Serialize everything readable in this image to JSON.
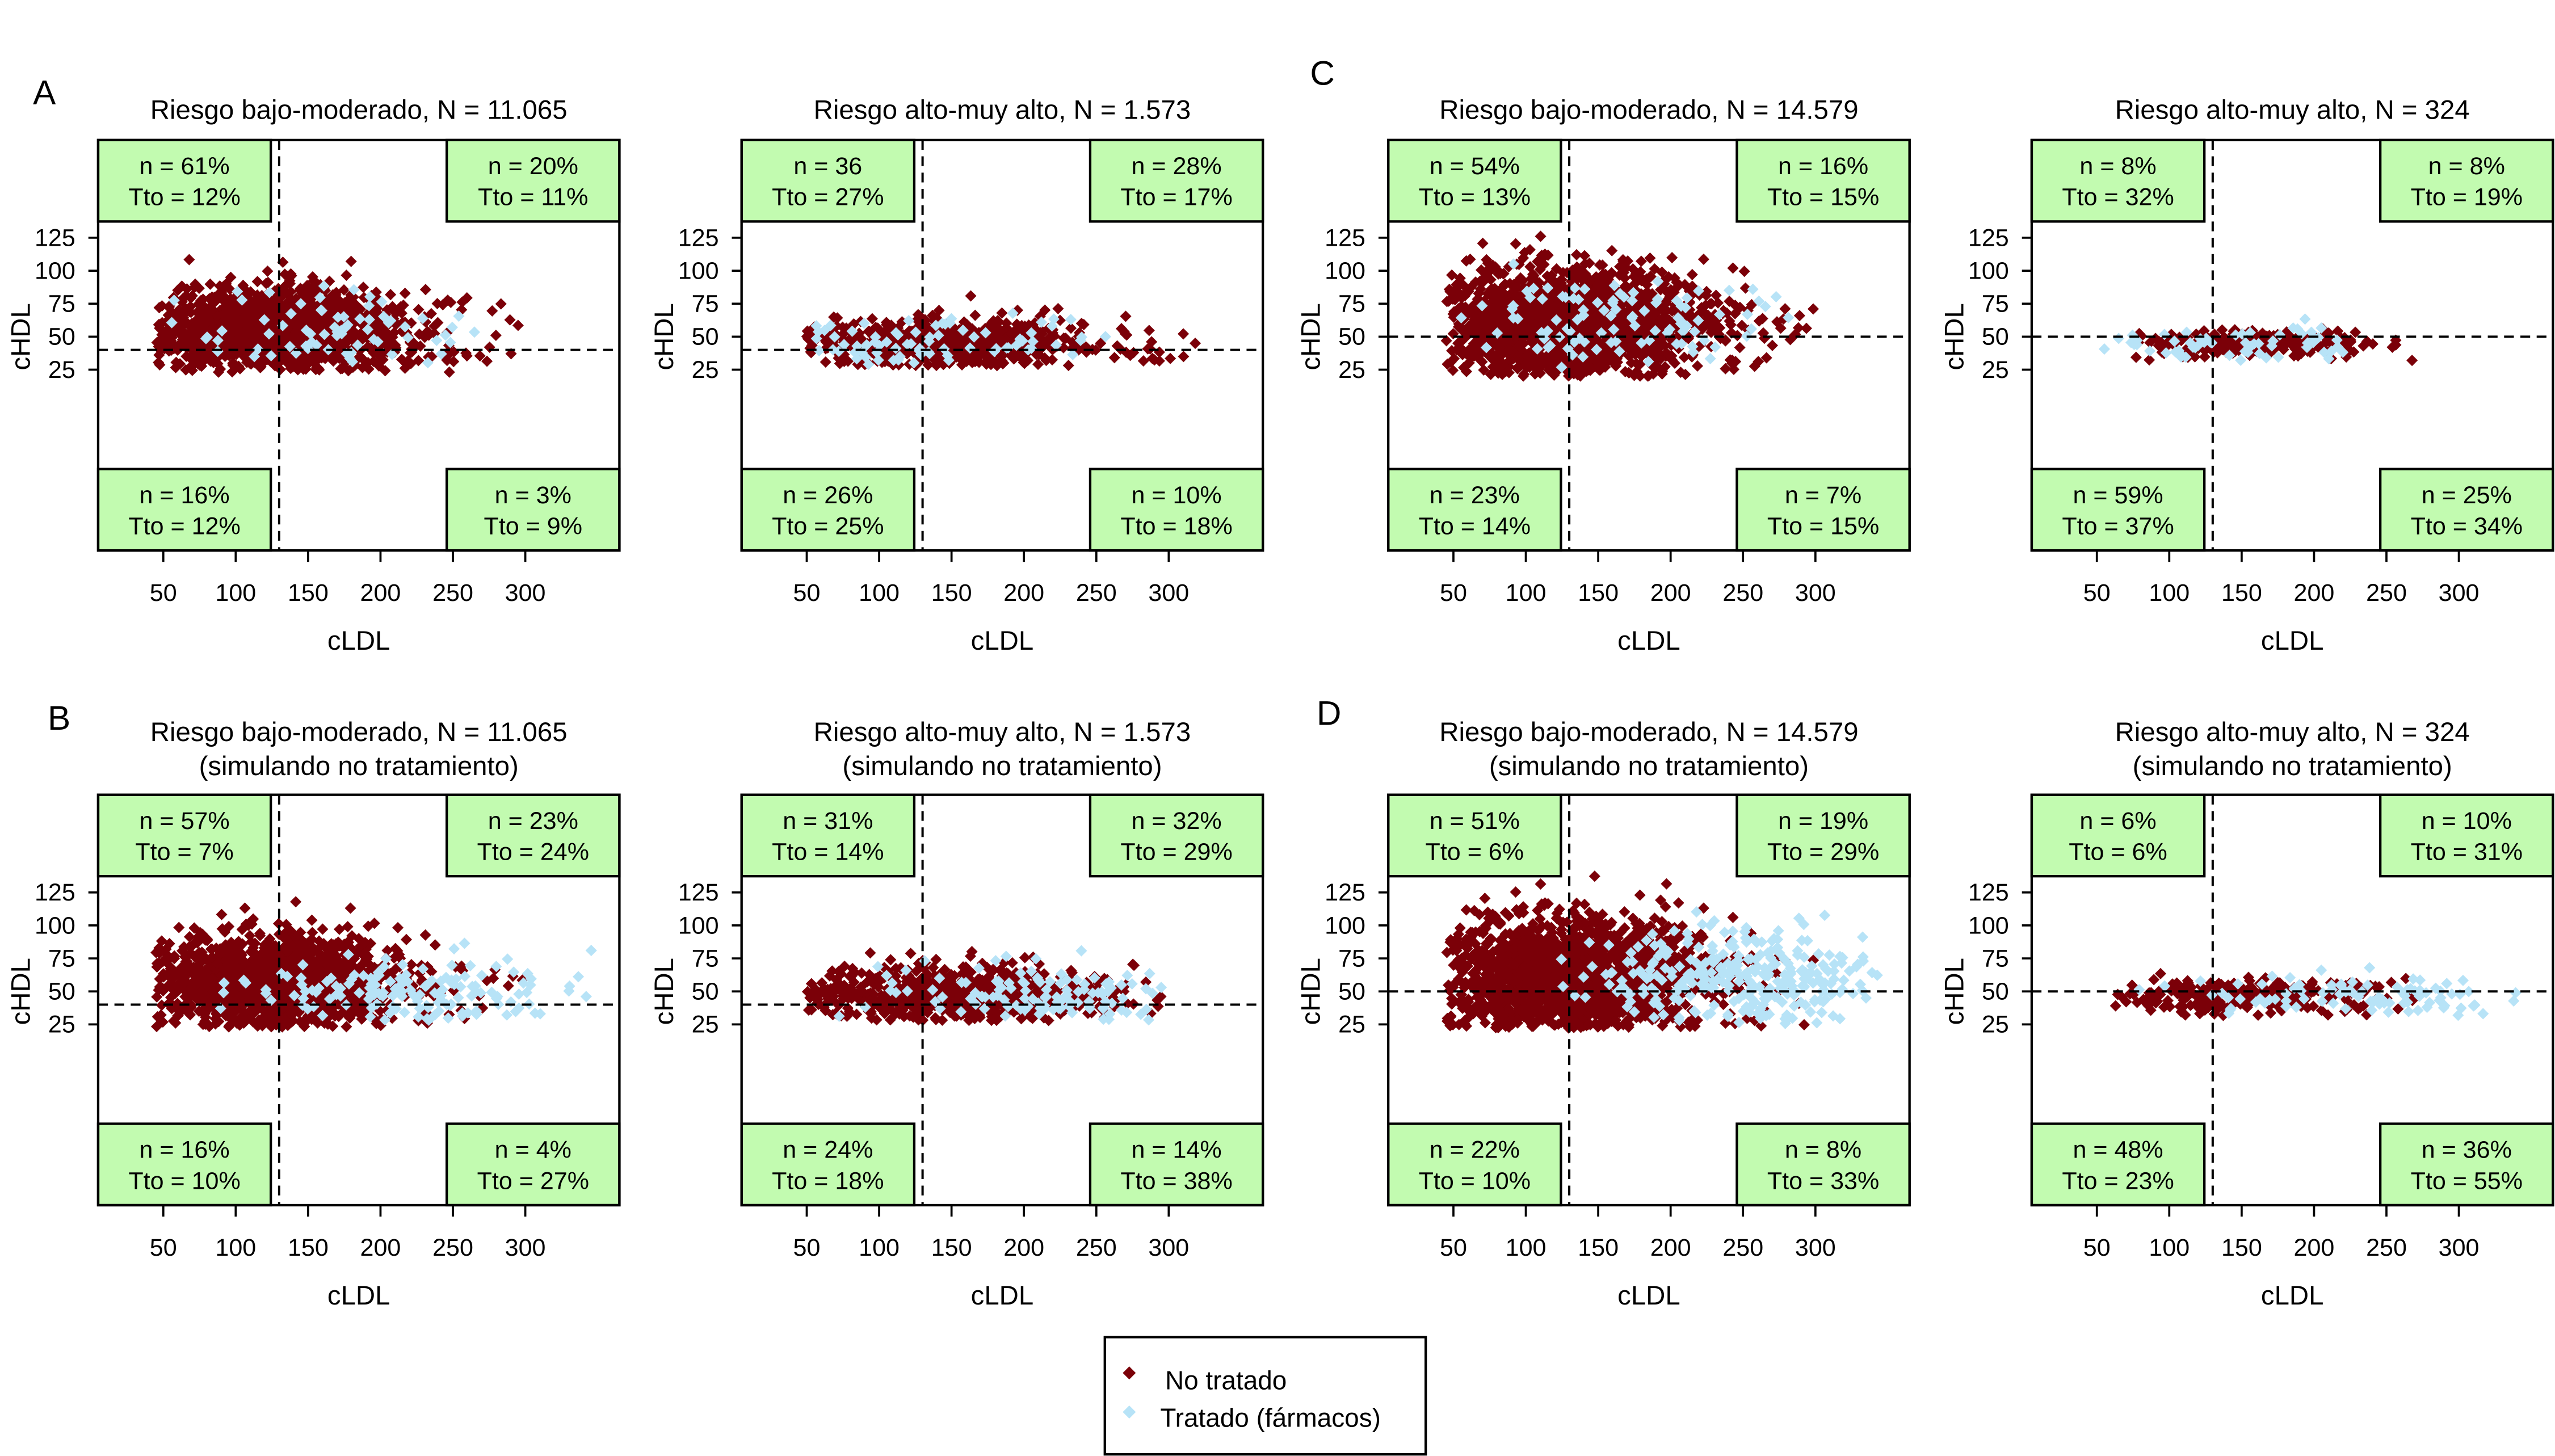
{
  "colors": {
    "untreated": "#7b0008",
    "treated": "#b7e3f7",
    "quadrant_box": "#c2fbb0",
    "axis": "#000000"
  },
  "legend": {
    "items": [
      {
        "label": "No tratado",
        "color": "#7b0008",
        "marker": "diamond"
      },
      {
        "label": "Tratado (fármacos)",
        "color": "#b7e3f7",
        "marker": "diamond"
      }
    ]
  },
  "chart_data": [
    {
      "panel_letter": "A",
      "type": "scatter",
      "title": "Riesgo bajo-moderado, N = 11.065",
      "subtitle": "",
      "xlabel": "cLDL",
      "ylabel": "cHDL",
      "xlim": [
        5,
        365
      ],
      "ylim": [
        -112,
        199
      ],
      "xticks": [
        "50",
        "100",
        "150",
        "200",
        "250",
        "300"
      ],
      "yticks": [
        "25",
        "50",
        "75",
        "100",
        "125"
      ],
      "ref_lines": {
        "x": 130,
        "y": 40
      },
      "quadrants": {
        "top_left": {
          "n": "n = 61%",
          "tto": "Tto = 12%"
        },
        "top_right": {
          "n": "n = 20%",
          "tto": "Tto = 11%"
        },
        "bottom_left": {
          "n": "n = 16%",
          "tto": "Tto = 12%"
        },
        "bottom_right": {
          "n": "n = 3%",
          "tto": "Tto = 9%"
        }
      },
      "series": [
        {
          "name": "No tratado",
          "x_mean": 125,
          "x_sd": 45,
          "x_range": [
            45,
            300
          ],
          "y_mean": 55,
          "y_sd": 16,
          "y_range": [
            23,
            115
          ],
          "approx_points": 1500
        },
        {
          "name": "Tratado (fármacos)",
          "x_mean": 150,
          "x_sd": 55,
          "x_range": [
            55,
            275
          ],
          "y_mean": 55,
          "y_sd": 18,
          "y_range": [
            25,
            100
          ],
          "approx_points": 70
        }
      ]
    },
    {
      "panel_letter": "",
      "type": "scatter",
      "title": "Riesgo alto-muy alto, N = 1.573",
      "subtitle": "",
      "xlabel": "cLDL",
      "ylabel": "cHDL",
      "xlim": [
        5,
        365
      ],
      "ylim": [
        -112,
        199
      ],
      "xticks": [
        "50",
        "100",
        "150",
        "200",
        "250",
        "300"
      ],
      "yticks": [
        "25",
        "50",
        "75",
        "100",
        "125"
      ],
      "ref_lines": {
        "x": 130,
        "y": 40
      },
      "quadrants": {
        "top_left": {
          "n": "n = 36",
          "tto": "Tto = 27%"
        },
        "top_right": {
          "n": "n = 28%",
          "tto": "Tto = 17%"
        },
        "bottom_left": {
          "n": "n = 26%",
          "tto": "Tto = 25%"
        },
        "bottom_right": {
          "n": "n = 10%",
          "tto": "Tto = 18%"
        }
      },
      "series": [
        {
          "name": "No tratado",
          "x_mean": 145,
          "x_sd": 50,
          "x_range": [
            50,
            320
          ],
          "y_mean": 45,
          "y_sd": 10,
          "y_range": [
            28,
            82
          ],
          "approx_points": 700
        },
        {
          "name": "Tratado (fármacos)",
          "x_mean": 140,
          "x_sd": 55,
          "x_range": [
            50,
            260
          ],
          "y_mean": 45,
          "y_sd": 12,
          "y_range": [
            28,
            95
          ],
          "approx_points": 80
        }
      ]
    },
    {
      "panel_letter": "C",
      "type": "scatter",
      "title": "Riesgo bajo-moderado, N = 14.579",
      "subtitle": "",
      "xlabel": "cLDL",
      "ylabel": "cHDL",
      "xlim": [
        5,
        365
      ],
      "ylim": [
        -112,
        199
      ],
      "xticks": [
        "50",
        "100",
        "150",
        "200",
        "250",
        "300"
      ],
      "yticks": [
        "25",
        "50",
        "75",
        "100",
        "125"
      ],
      "ref_lines": {
        "x": 130,
        "y": 50
      },
      "quadrants": {
        "top_left": {
          "n": "n = 54%",
          "tto": "Tto = 13%"
        },
        "top_right": {
          "n": "n = 16%",
          "tto": "Tto = 15%"
        },
        "bottom_left": {
          "n": "n = 23%",
          "tto": "Tto = 14%"
        },
        "bottom_right": {
          "n": "n = 7%",
          "tto": "Tto = 15%"
        }
      },
      "series": [
        {
          "name": "No tratado",
          "x_mean": 130,
          "x_sd": 48,
          "x_range": [
            45,
            300
          ],
          "y_mean": 60,
          "y_sd": 20,
          "y_range": [
            20,
            135
          ],
          "approx_points": 1800
        },
        {
          "name": "Tratado (fármacos)",
          "x_mean": 160,
          "x_sd": 55,
          "x_range": [
            50,
            285
          ],
          "y_mean": 60,
          "y_sd": 18,
          "y_range": [
            25,
            110
          ],
          "approx_points": 100
        }
      ]
    },
    {
      "panel_letter": "",
      "type": "scatter",
      "title": "Riesgo alto-muy alto, N = 324",
      "subtitle": "",
      "xlabel": "cLDL",
      "ylabel": "cHDL",
      "xlim": [
        5,
        365
      ],
      "ylim": [
        -112,
        199
      ],
      "xticks": [
        "50",
        "100",
        "150",
        "200",
        "250",
        "300"
      ],
      "yticks": [
        "25",
        "50",
        "75",
        "100",
        "125"
      ],
      "ref_lines": {
        "x": 130,
        "y": 50
      },
      "quadrants": {
        "top_left": {
          "n": "n = 8%",
          "tto": "Tto = 32%"
        },
        "top_right": {
          "n": "n = 8%",
          "tto": "Tto = 19%"
        },
        "bottom_left": {
          "n": "n = 59%",
          "tto": "Tto = 37%"
        },
        "bottom_right": {
          "n": "n = 25%",
          "tto": "Tto = 34%"
        }
      },
      "series": [
        {
          "name": "No tratado",
          "x_mean": 160,
          "x_sd": 45,
          "x_range": [
            70,
            270
          ],
          "y_mean": 45,
          "y_sd": 6,
          "y_range": [
            30,
            62
          ],
          "approx_points": 250
        },
        {
          "name": "Tratado (fármacos)",
          "x_mean": 150,
          "x_sd": 55,
          "x_range": [
            50,
            280
          ],
          "y_mean": 45,
          "y_sd": 8,
          "y_range": [
            30,
            85
          ],
          "approx_points": 60
        }
      ]
    },
    {
      "panel_letter": "B",
      "type": "scatter",
      "title": "Riesgo bajo-moderado, N = 11.065",
      "subtitle": "(simulando no tratamiento)",
      "xlabel": "cLDL",
      "ylabel": "cHDL",
      "xlim": [
        5,
        365
      ],
      "ylim": [
        -112,
        199
      ],
      "xticks": [
        "50",
        "100",
        "150",
        "200",
        "250",
        "300"
      ],
      "yticks": [
        "25",
        "50",
        "75",
        "100",
        "125"
      ],
      "ref_lines": {
        "x": 130,
        "y": 40
      },
      "quadrants": {
        "top_left": {
          "n": "n = 57%",
          "tto": "Tto = 7%"
        },
        "top_right": {
          "n": "n = 23%",
          "tto": "Tto = 24%"
        },
        "bottom_left": {
          "n": "n = 16%",
          "tto": "Tto = 10%"
        },
        "bottom_right": {
          "n": "n = 4%",
          "tto": "Tto = 27%"
        }
      },
      "series": [
        {
          "name": "No tratado",
          "x_mean": 125,
          "x_sd": 45,
          "x_range": [
            45,
            300
          ],
          "y_mean": 57,
          "y_sd": 17,
          "y_range": [
            23,
            118
          ],
          "approx_points": 1500
        },
        {
          "name": "Tratado (fármacos)",
          "x_mean": 230,
          "x_sd": 60,
          "x_range": [
            60,
            350
          ],
          "y_mean": 50,
          "y_sd": 13,
          "y_range": [
            28,
            90
          ],
          "approx_points": 150
        }
      ]
    },
    {
      "panel_letter": "",
      "type": "scatter",
      "title": "Riesgo alto-muy alto, N = 1.573",
      "subtitle": "(simulando no tratamiento)",
      "xlabel": "cLDL",
      "ylabel": "cHDL",
      "xlim": [
        5,
        365
      ],
      "ylim": [
        -112,
        199
      ],
      "xticks": [
        "50",
        "100",
        "150",
        "200",
        "250",
        "300"
      ],
      "yticks": [
        "25",
        "50",
        "75",
        "100",
        "125"
      ],
      "ref_lines": {
        "x": 130,
        "y": 40
      },
      "quadrants": {
        "top_left": {
          "n": "n = 31%",
          "tto": "Tto = 14%"
        },
        "top_right": {
          "n": "n = 32%",
          "tto": "Tto = 29%"
        },
        "bottom_left": {
          "n": "n = 24%",
          "tto": "Tto = 18%"
        },
        "bottom_right": {
          "n": "n = 14%",
          "tto": "Tto = 38%"
        }
      },
      "series": [
        {
          "name": "No tratado",
          "x_mean": 150,
          "x_sd": 50,
          "x_range": [
            50,
            320
          ],
          "y_mean": 48,
          "y_sd": 11,
          "y_range": [
            28,
            88
          ],
          "approx_points": 700
        },
        {
          "name": "Tratado (fármacos)",
          "x_mean": 220,
          "x_sd": 60,
          "x_range": [
            60,
            300
          ],
          "y_mean": 48,
          "y_sd": 12,
          "y_range": [
            28,
            90
          ],
          "approx_points": 120
        }
      ]
    },
    {
      "panel_letter": "D",
      "type": "scatter",
      "title": "Riesgo bajo-moderado, N = 14.579",
      "subtitle": "(simulando no tratamiento)",
      "xlabel": "cLDL",
      "ylabel": "cHDL",
      "xlim": [
        5,
        365
      ],
      "ylim": [
        -112,
        199
      ],
      "xticks": [
        "50",
        "100",
        "150",
        "200",
        "250",
        "300"
      ],
      "yticks": [
        "25",
        "50",
        "75",
        "100",
        "125"
      ],
      "ref_lines": {
        "x": 130,
        "y": 50
      },
      "quadrants": {
        "top_left": {
          "n": "n = 51%",
          "tto": "Tto = 6%"
        },
        "top_right": {
          "n": "n = 19%",
          "tto": "Tto = 29%"
        },
        "bottom_left": {
          "n": "n = 22%",
          "tto": "Tto = 10%"
        },
        "bottom_right": {
          "n": "n = 8%",
          "tto": "Tto = 33%"
        }
      },
      "series": [
        {
          "name": "No tratado",
          "x_mean": 130,
          "x_sd": 48,
          "x_range": [
            45,
            300
          ],
          "y_mean": 62,
          "y_sd": 21,
          "y_range": [
            22,
            138
          ],
          "approx_points": 1800
        },
        {
          "name": "Tratado (fármacos)",
          "x_mean": 250,
          "x_sd": 50,
          "x_range": [
            120,
            345
          ],
          "y_mean": 62,
          "y_sd": 18,
          "y_range": [
            25,
            125
          ],
          "approx_points": 300
        }
      ]
    },
    {
      "panel_letter": "",
      "type": "scatter",
      "title": "Riesgo alto-muy alto, N = 324",
      "subtitle": "(simulando no tratamiento)",
      "xlabel": "cLDL",
      "ylabel": "cHDL",
      "xlim": [
        5,
        365
      ],
      "ylim": [
        -112,
        199
      ],
      "xticks": [
        "50",
        "100",
        "150",
        "200",
        "250",
        "300"
      ],
      "yticks": [
        "25",
        "50",
        "75",
        "100",
        "125"
      ],
      "ref_lines": {
        "x": 130,
        "y": 50
      },
      "quadrants": {
        "top_left": {
          "n": "n = 6%",
          "tto": "Tto = 6%"
        },
        "top_right": {
          "n": "n = 10%",
          "tto": "Tto = 31%"
        },
        "bottom_left": {
          "n": "n = 48%",
          "tto": "Tto = 23%"
        },
        "bottom_right": {
          "n": "n = 36%",
          "tto": "Tto = 55%"
        }
      },
      "series": [
        {
          "name": "No tratado",
          "x_mean": 150,
          "x_sd": 45,
          "x_range": [
            60,
            270
          ],
          "y_mean": 46,
          "y_sd": 7,
          "y_range": [
            30,
            65
          ],
          "approx_points": 250
        },
        {
          "name": "Tratado (fármacos)",
          "x_mean": 220,
          "x_sd": 70,
          "x_range": [
            60,
            345
          ],
          "y_mean": 47,
          "y_sd": 8,
          "y_range": [
            30,
            88
          ],
          "approx_points": 90
        }
      ]
    }
  ]
}
